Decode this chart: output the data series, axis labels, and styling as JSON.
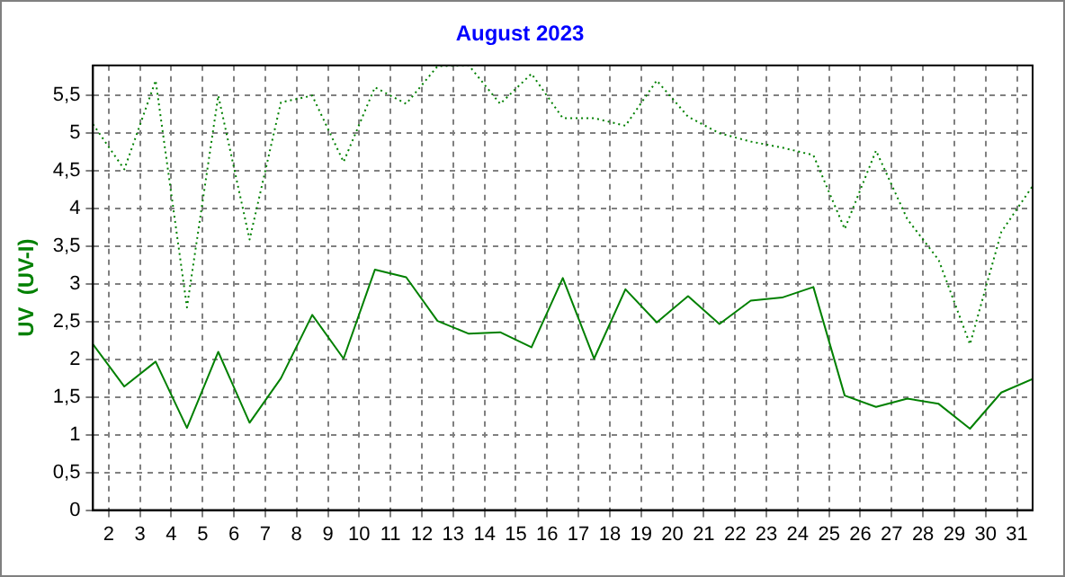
{
  "chart_data": {
    "type": "line",
    "title": "August 2023",
    "ylabel": "UV  (UV-I)",
    "x": [
      1.5,
      2.5,
      3.5,
      4.5,
      5.5,
      6.5,
      7.5,
      8.5,
      9.5,
      10.5,
      11.5,
      12.5,
      13.5,
      14.5,
      15.5,
      16.5,
      17.5,
      18.5,
      19.5,
      20.5,
      21.5,
      22.5,
      23.5,
      24.5,
      25.5,
      26.5,
      27.5,
      28.5,
      29.5,
      30.5,
      31.5
    ],
    "series": [
      {
        "color": "#008000",
        "line_style": "dotted",
        "values": [
          5.12,
          4.52,
          5.7,
          2.69,
          5.5,
          3.59,
          5.41,
          5.5,
          4.62,
          5.61,
          5.39,
          5.89,
          5.9,
          5.39,
          5.79,
          5.2,
          5.2,
          5.1,
          5.7,
          5.22,
          5.0,
          4.89,
          4.81,
          4.71,
          3.73,
          4.77,
          3.86,
          3.32,
          2.2,
          3.69,
          4.3
        ]
      },
      {
        "color": "#008000",
        "line_style": "solid",
        "values": [
          2.2,
          1.64,
          1.97,
          1.09,
          2.1,
          1.16,
          1.75,
          2.59,
          2.01,
          3.19,
          3.09,
          2.51,
          2.34,
          2.36,
          2.16,
          3.08,
          2.01,
          2.93,
          2.49,
          2.84,
          2.47,
          2.78,
          2.82,
          2.96,
          1.52,
          1.37,
          1.48,
          1.41,
          1.08,
          1.56,
          1.74
        ]
      }
    ],
    "xlim": [
      1.5,
      31.5
    ],
    "xticks": [
      2,
      3,
      4,
      5,
      6,
      7,
      8,
      9,
      10,
      11,
      12,
      13,
      14,
      15,
      16,
      17,
      18,
      19,
      20,
      21,
      22,
      23,
      24,
      25,
      26,
      27,
      28,
      29,
      30,
      31
    ],
    "ylim": [
      0,
      5.9
    ],
    "yticks": [
      0,
      {
        "value": 0.5,
        "label": "0,5"
      },
      1,
      {
        "value": 1.5,
        "label": "1,5"
      },
      2,
      {
        "value": 2.5,
        "label": "2,5"
      },
      3,
      {
        "value": 3.5,
        "label": "3,5"
      },
      4,
      {
        "value": 4.5,
        "label": "4,5"
      },
      5,
      {
        "value": 5.5,
        "label": "5,5"
      }
    ],
    "grid": true,
    "legend": false,
    "marker": "none"
  }
}
